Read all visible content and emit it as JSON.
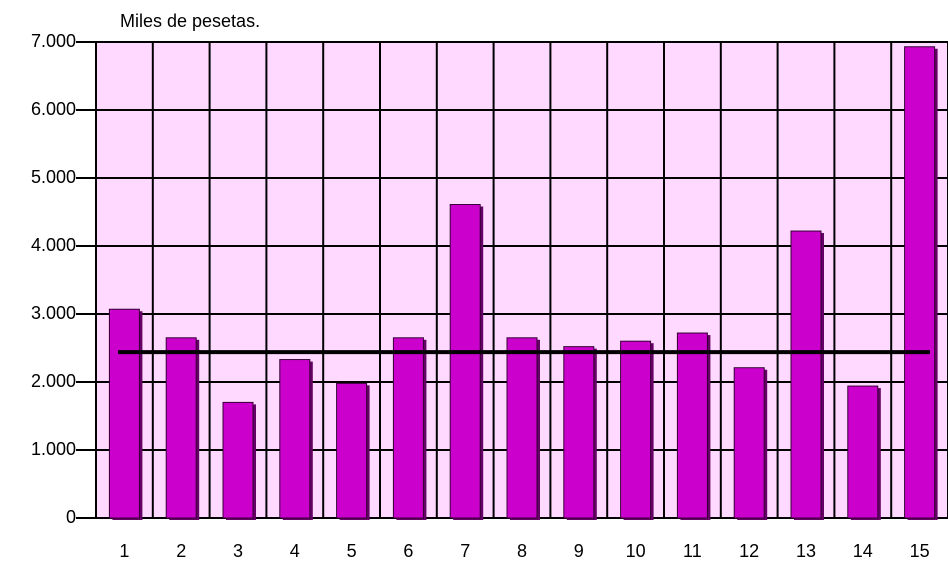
{
  "chart_data": {
    "type": "bar",
    "title": "Miles de pesetas.",
    "categories": [
      "1",
      "2",
      "3",
      "4",
      "5",
      "6",
      "7",
      "8",
      "9",
      "10",
      "11",
      "12",
      "13",
      "14",
      "15"
    ],
    "values": [
      3070,
      2650,
      1700,
      2330,
      1980,
      2650,
      4610,
      2650,
      2520,
      2600,
      2720,
      2210,
      4220,
      1940,
      6930
    ],
    "color": "#cc00cc",
    "reference_line": 2440,
    "ylim": [
      0,
      7000
    ],
    "yticks": [
      0,
      {
        "value": 1000,
        "label": "1.000"
      },
      {
        "value": 2000,
        "label": "2.000"
      },
      {
        "value": 3000,
        "label": "3.000"
      },
      {
        "value": 4000,
        "label": "4.000"
      },
      {
        "value": 5000,
        "label": "5.000"
      },
      {
        "value": 6000,
        "label": "6.000"
      },
      {
        "value": 7000,
        "label": "7.000"
      }
    ],
    "grid": true
  }
}
